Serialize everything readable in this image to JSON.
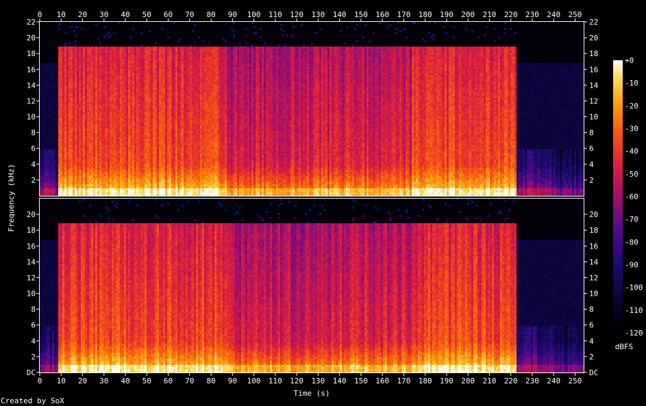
{
  "chart_data": {
    "type": "heatmap",
    "title": "",
    "xlabel": "Time (s)",
    "ylabel": "Frequency (kHz)",
    "xlim": [
      0,
      254
    ],
    "ylim": [
      0,
      22
    ],
    "x_ticks": [
      0,
      10,
      20,
      30,
      40,
      50,
      60,
      70,
      80,
      90,
      100,
      110,
      120,
      130,
      140,
      150,
      160,
      170,
      180,
      190,
      200,
      210,
      220,
      230,
      240,
      250
    ],
    "y_ticks": [
      {
        "value": 0,
        "label": "DC"
      },
      {
        "value": 2,
        "label": "2"
      },
      {
        "value": 4,
        "label": "4"
      },
      {
        "value": 6,
        "label": "6"
      },
      {
        "value": 8,
        "label": "8"
      },
      {
        "value": 10,
        "label": "10"
      },
      {
        "value": 12,
        "label": "12"
      },
      {
        "value": 14,
        "label": "14"
      },
      {
        "value": 16,
        "label": "16"
      },
      {
        "value": 18,
        "label": "18"
      },
      {
        "value": 20,
        "label": "20"
      },
      {
        "value": 22,
        "label": "22"
      }
    ],
    "channels": 2,
    "colorbar": {
      "label": "dBFS",
      "range": [
        -120,
        0
      ],
      "ticks": [
        "+0",
        "-10",
        "-20",
        "-30",
        "-40",
        "-50",
        "-60",
        "-70",
        "-80",
        "-90",
        "-100",
        "-110",
        "-120"
      ]
    },
    "segments": [
      {
        "start": 0,
        "end": 8.5,
        "cutoff_khz": 17,
        "level": 0.25
      },
      {
        "start": 8.5,
        "end": 87,
        "cutoff_khz": 19,
        "level": 0.72
      },
      {
        "start": 87,
        "end": 124,
        "cutoff_khz": 19,
        "level": 0.62
      },
      {
        "start": 124,
        "end": 173,
        "cutoff_khz": 19,
        "level": 0.64
      },
      {
        "start": 173,
        "end": 222,
        "cutoff_khz": 19,
        "level": 0.72
      },
      {
        "start": 222,
        "end": 240,
        "cutoff_khz": 17,
        "level": 0.28
      },
      {
        "start": 240,
        "end": 254,
        "cutoff_khz": 17,
        "level": 0.18
      }
    ]
  },
  "footer": "Created by SoX"
}
